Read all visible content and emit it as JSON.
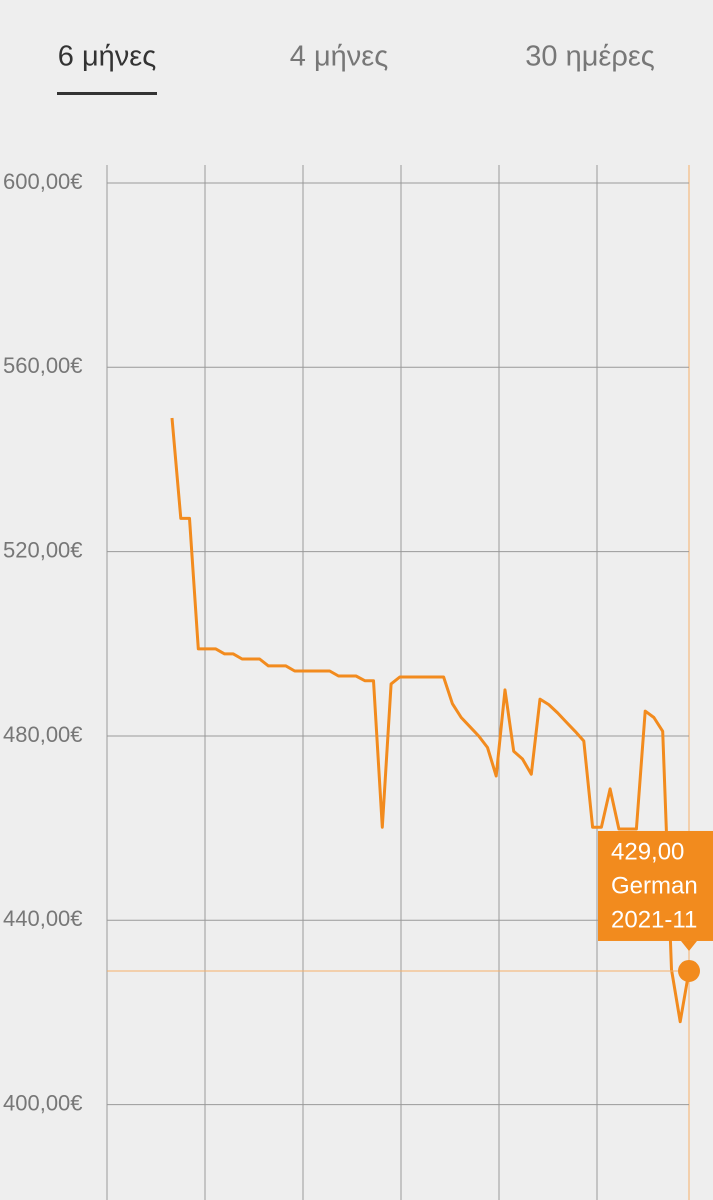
{
  "tabs": [
    "6 μήνες",
    "4 μήνες",
    "30 ημέρες"
  ],
  "chart_data": {
    "type": "line",
    "color": "#f28b1e",
    "categories": [
      null,
      null,
      null,
      null,
      null,
      null,
      null,
      null,
      null,
      null,
      null,
      null,
      null,
      null,
      null,
      null,
      null,
      null,
      null,
      null,
      null,
      null,
      null,
      null,
      null,
      null,
      null,
      null,
      null,
      null,
      null,
      null,
      null,
      null,
      null,
      null,
      null,
      null,
      null,
      null,
      null,
      null,
      null,
      null,
      null,
      null,
      null,
      null,
      null,
      null,
      null,
      null,
      null,
      null,
      null,
      null,
      null,
      null,
      null,
      null
    ],
    "values": [
      549,
      527.2,
      527.2,
      498.9,
      498.9,
      498.9,
      497.8,
      497.8,
      496.7,
      496.7,
      496.7,
      495.2,
      495.2,
      495.2,
      494.1,
      494.1,
      494.1,
      494.1,
      494.1,
      493,
      493,
      493,
      492,
      492,
      460.2,
      491.3,
      492.8,
      492.8,
      492.8,
      492.8,
      492.8,
      492.8,
      487,
      484,
      482,
      480,
      477.5,
      471.3,
      490,
      476.7,
      475,
      471.7,
      488,
      486.8,
      485,
      483,
      481,
      478.9,
      460.2,
      460.2,
      468.5,
      459.8,
      459.8,
      459.8,
      485.4,
      484,
      481,
      429.3,
      418,
      429
    ],
    "ylim": [
      379.3,
      603.9
    ],
    "yticks": [
      {
        "value": 400,
        "label": "400,00€"
      },
      {
        "value": 440,
        "label": "440,00€"
      },
      {
        "value": 480,
        "label": "480,00€"
      },
      {
        "value": 520,
        "label": "520,00€"
      },
      {
        "value": 560,
        "label": "560,00€"
      },
      {
        "value": 600,
        "label": "600,00€"
      }
    ],
    "grid": true,
    "tooltip": {
      "price": "429,00",
      "shop": "German",
      "date": "2021-11"
    }
  }
}
